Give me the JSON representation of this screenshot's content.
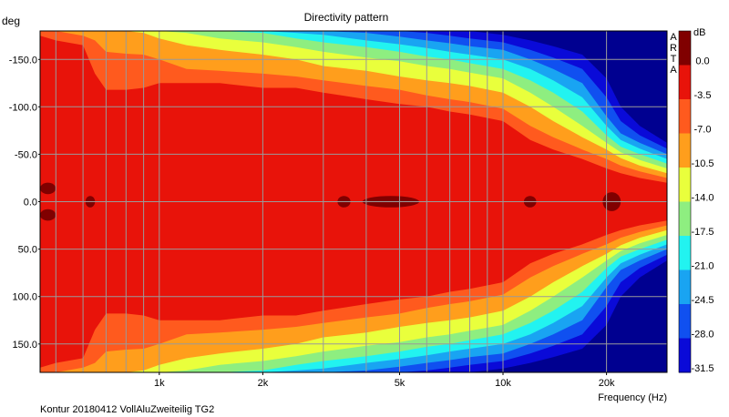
{
  "chart_data": {
    "type": "heatmap",
    "title": "Directivity pattern",
    "ylabel": "deg",
    "xlabel": "Frequency (Hz)",
    "footer": "Kontur 20180412 VollAluZweiteilig TG2",
    "watermark": [
      "A",
      "R",
      "T",
      "A"
    ],
    "x_scale": "log",
    "x_unit": "Hz",
    "xlim": [
      450,
      30000
    ],
    "ylim": [
      -180,
      180
    ],
    "y_ticks": [
      {
        "value": -150,
        "label": "-150.0"
      },
      {
        "value": -100,
        "label": "-100.0"
      },
      {
        "value": -50,
        "label": "-50.0"
      },
      {
        "value": 0,
        "label": "0.0"
      },
      {
        "value": 50,
        "label": "50.0"
      },
      {
        "value": 100,
        "label": "100.0"
      },
      {
        "value": 150,
        "label": "150.0"
      }
    ],
    "x_ticks": [
      {
        "value": 1000,
        "label": "1k"
      },
      {
        "value": 2000,
        "label": "2k"
      },
      {
        "value": 5000,
        "label": "5k"
      },
      {
        "value": 10000,
        "label": "10k"
      },
      {
        "value": 20000,
        "label": "20k"
      }
    ],
    "grid": true,
    "colorbar": {
      "unit": "dB",
      "levels": [
        0.0,
        -3.5,
        -7.0,
        -10.5,
        -14.0,
        -17.5,
        -21.0,
        -24.5,
        -28.0,
        -31.5
      ],
      "labels": [
        "0.0",
        "-3.5",
        "-7.0",
        "-10.5",
        "-14.0",
        "-17.5",
        "-21.0",
        "-24.5",
        "-28.0",
        "-31.5"
      ],
      "colors": [
        "#800000",
        "#e8130a",
        "#ff5a1e",
        "#ff9e1c",
        "#e9ff3c",
        "#8eee80",
        "#22f3f0",
        "#19a4f2",
        "#1050f0",
        "#0a0ad8"
      ],
      "top_color": "#800000",
      "floor_color": "#000090"
    },
    "isoline_angles_deg_by_level": {
      "frequency_hz": [
        450,
        500,
        600,
        650,
        700,
        800,
        900,
        1000,
        1200,
        1500,
        2000,
        2500,
        3000,
        4000,
        5000,
        6000,
        7000,
        8000,
        10000,
        12000,
        14000,
        17000,
        20000,
        22000,
        25000,
        30000
      ],
      "-3.5": [
        175,
        170,
        165,
        135,
        118,
        118,
        120,
        125,
        125,
        125,
        120,
        120,
        115,
        108,
        103,
        100,
        95,
        92,
        85,
        65,
        55,
        45,
        35,
        30,
        25,
        20
      ],
      "-7.0": [
        180,
        180,
        175,
        170,
        158,
        156,
        155,
        150,
        140,
        138,
        135,
        132,
        128,
        122,
        118,
        112,
        108,
        105,
        98,
        80,
        68,
        55,
        45,
        38,
        32,
        25
      ],
      "-10.5": [
        180,
        180,
        180,
        180,
        180,
        180,
        178,
        172,
        165,
        160,
        155,
        150,
        143,
        138,
        132,
        128,
        125,
        122,
        115,
        100,
        85,
        68,
        55,
        46,
        38,
        30
      ],
      "-14.0": [
        180,
        180,
        180,
        180,
        180,
        180,
        180,
        180,
        178,
        172,
        168,
        163,
        158,
        152,
        148,
        143,
        140,
        136,
        130,
        115,
        100,
        80,
        62,
        52,
        44,
        35
      ],
      "-17.5": [
        180,
        180,
        180,
        180,
        180,
        180,
        180,
        180,
        180,
        180,
        178,
        172,
        168,
        163,
        158,
        153,
        150,
        146,
        140,
        128,
        115,
        95,
        70,
        58,
        50,
        40
      ],
      "-21.0": [
        180,
        180,
        180,
        180,
        180,
        180,
        180,
        180,
        180,
        180,
        180,
        178,
        176,
        170,
        166,
        162,
        158,
        155,
        150,
        140,
        128,
        110,
        80,
        65,
        56,
        45
      ],
      "-24.5": [
        180,
        180,
        180,
        180,
        180,
        180,
        180,
        180,
        180,
        180,
        180,
        180,
        180,
        178,
        174,
        170,
        167,
        164,
        160,
        150,
        140,
        125,
        90,
        72,
        62,
        50
      ],
      "-28.0": [
        180,
        180,
        180,
        180,
        180,
        180,
        180,
        180,
        180,
        180,
        180,
        180,
        180,
        180,
        180,
        178,
        175,
        172,
        168,
        160,
        152,
        140,
        110,
        85,
        70,
        56
      ],
      "-31.5": [
        180,
        180,
        180,
        180,
        180,
        180,
        180,
        180,
        180,
        180,
        180,
        180,
        180,
        180,
        180,
        180,
        180,
        180,
        176,
        170,
        164,
        155,
        130,
        100,
        80,
        62
      ]
    },
    "peak_regions_above_0dB": [
      {
        "freq_range_hz": [
          450,
          500
        ],
        "angle_range_deg": [
          -20,
          -8
        ]
      },
      {
        "freq_range_hz": [
          450,
          500
        ],
        "angle_range_deg": [
          8,
          20
        ]
      },
      {
        "freq_range_hz": [
          610,
          650
        ],
        "angle_range_deg": [
          -6,
          6
        ]
      },
      {
        "freq_range_hz": [
          3300,
          3600
        ],
        "angle_range_deg": [
          -6,
          6
        ]
      },
      {
        "freq_range_hz": [
          3900,
          5700
        ],
        "angle_range_deg": [
          -6,
          6
        ]
      },
      {
        "freq_range_hz": [
          11500,
          12500
        ],
        "angle_range_deg": [
          -6,
          6
        ]
      },
      {
        "freq_range_hz": [
          19500,
          22000
        ],
        "angle_range_deg": [
          -10,
          10
        ]
      }
    ]
  }
}
